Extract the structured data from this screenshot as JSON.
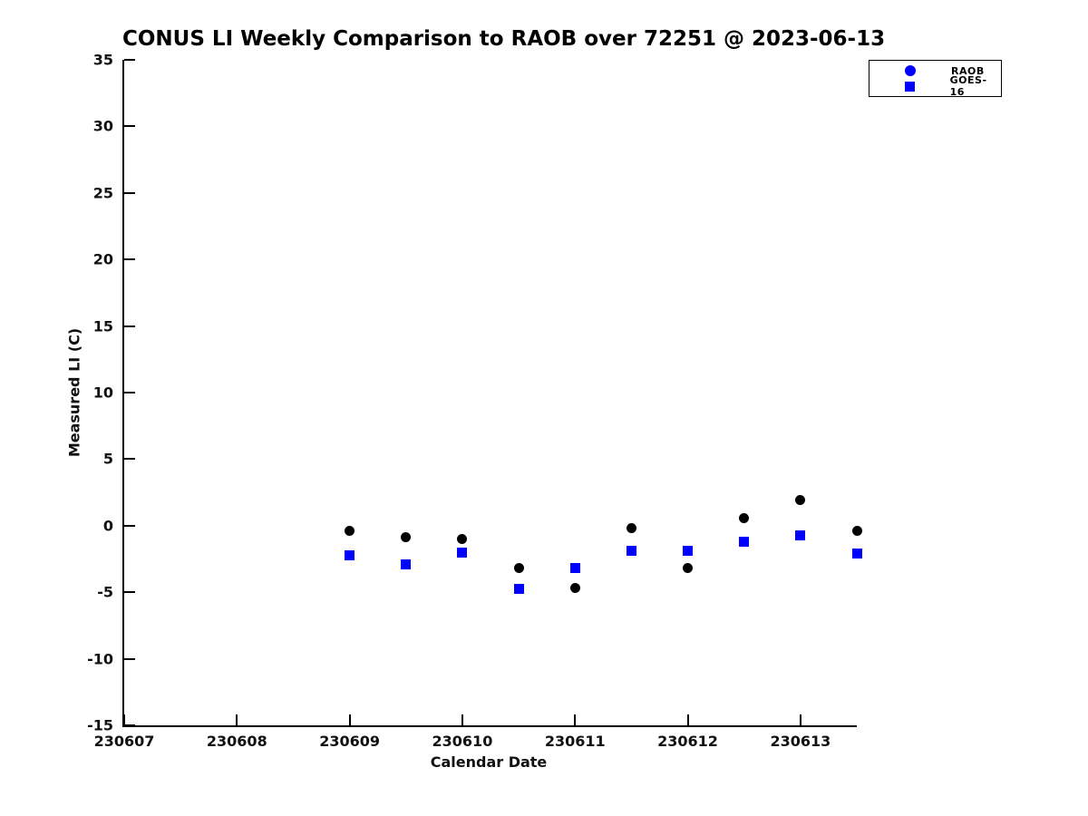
{
  "chart_data": {
    "type": "scatter",
    "title": "CONUS LI Weekly Comparison to RAOB over 72251 @ 2023-06-13",
    "xlabel": "Calendar Date",
    "ylabel": "Measured LI (C)",
    "xlim": [
      230607,
      230613.5
    ],
    "ylim": [
      -15,
      35
    ],
    "x_ticks": [
      230607,
      230608,
      230609,
      230610,
      230611,
      230612,
      230613
    ],
    "x_tick_labels": [
      "230607",
      "230608",
      "230609",
      "230610",
      "230611",
      "230612",
      "230613"
    ],
    "y_ticks": [
      -15,
      -10,
      -5,
      0,
      5,
      10,
      15,
      20,
      25,
      30,
      35
    ],
    "y_tick_labels": [
      "-15",
      "-10",
      "-5",
      "0",
      "5",
      "10",
      "15",
      "20",
      "25",
      "30",
      "35"
    ],
    "grid": false,
    "legend_position": "top-right",
    "series": [
      {
        "name": "RAOB",
        "marker": "circle",
        "color": "#000000",
        "legend_marker_color": "#0000ff",
        "points": [
          {
            "x": 230609.0,
            "y": -0.4
          },
          {
            "x": 230609.5,
            "y": -0.85
          },
          {
            "x": 230610.0,
            "y": -1.0
          },
          {
            "x": 230610.5,
            "y": -3.15
          },
          {
            "x": 230611.0,
            "y": -4.65
          },
          {
            "x": 230611.5,
            "y": -0.15
          },
          {
            "x": 230612.0,
            "y": -3.15
          },
          {
            "x": 230612.5,
            "y": 0.55
          },
          {
            "x": 230613.0,
            "y": 1.9
          },
          {
            "x": 230613.5,
            "y": -0.4
          }
        ]
      },
      {
        "name": "GOES-16",
        "marker": "square",
        "color": "#0000ff",
        "legend_marker_color": "#0000ff",
        "points": [
          {
            "x": 230609.0,
            "y": -2.2
          },
          {
            "x": 230609.5,
            "y": -2.9
          },
          {
            "x": 230610.0,
            "y": -2.0
          },
          {
            "x": 230610.5,
            "y": -4.75
          },
          {
            "x": 230611.0,
            "y": -3.15
          },
          {
            "x": 230611.5,
            "y": -1.9
          },
          {
            "x": 230612.0,
            "y": -1.9
          },
          {
            "x": 230612.5,
            "y": -1.2
          },
          {
            "x": 230613.0,
            "y": -0.7
          },
          {
            "x": 230613.5,
            "y": -2.1
          }
        ]
      }
    ],
    "colors": {
      "axis": "#000000",
      "text": "#111111",
      "background": "#ffffff",
      "raob_marker": "#000000",
      "goes16_marker": "#0000ff"
    }
  }
}
